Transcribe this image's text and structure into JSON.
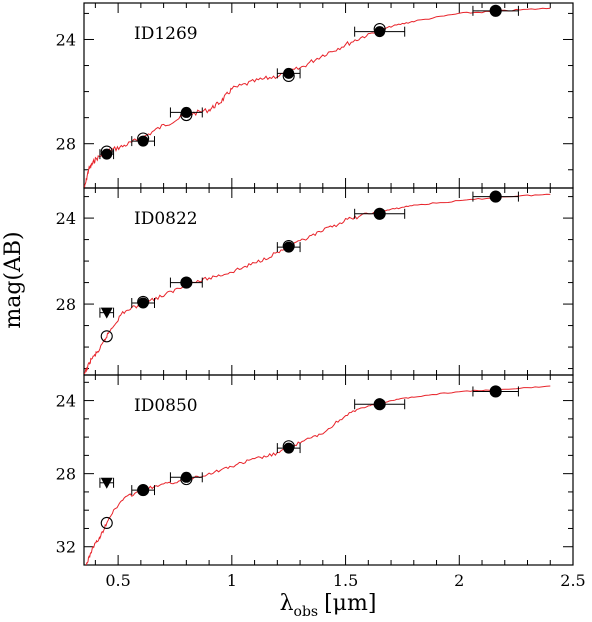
{
  "chart_data": [
    {
      "type": "scatter",
      "title": "ID1269",
      "xlim": [
        0.35,
        2.5
      ],
      "ylim": [
        29.7,
        22.6
      ],
      "yticks": [
        24,
        28
      ],
      "photometry": [
        {
          "x": 0.45,
          "xerr": 0.03,
          "y": 28.4
        },
        {
          "x": 0.61,
          "xerr": 0.05,
          "y": 27.9
        },
        {
          "x": 0.8,
          "xerr": 0.07,
          "y": 26.8
        },
        {
          "x": 1.25,
          "xerr": 0.05,
          "y": 25.3
        },
        {
          "x": 1.65,
          "xerr": 0.11,
          "y": 23.7
        },
        {
          "x": 2.16,
          "xerr": 0.1,
          "y": 22.9
        }
      ],
      "model": [
        {
          "x": 0.45,
          "y": 28.3
        },
        {
          "x": 0.61,
          "y": 27.8
        },
        {
          "x": 0.8,
          "y": 26.9
        },
        {
          "x": 1.25,
          "y": 25.4
        },
        {
          "x": 1.65,
          "y": 23.6
        },
        {
          "x": 2.16,
          "y": 22.9
        }
      ],
      "sed_curve": [
        [
          0.35,
          29.8
        ],
        [
          0.37,
          29.0
        ],
        [
          0.4,
          28.6
        ],
        [
          0.45,
          28.3
        ],
        [
          0.52,
          28.1
        ],
        [
          0.6,
          27.8
        ],
        [
          0.7,
          27.3
        ],
        [
          0.8,
          26.9
        ],
        [
          0.9,
          26.7
        ],
        [
          0.95,
          26.4
        ],
        [
          1.0,
          25.9
        ],
        [
          1.1,
          25.6
        ],
        [
          1.2,
          25.4
        ],
        [
          1.3,
          25.1
        ],
        [
          1.4,
          24.6
        ],
        [
          1.5,
          24.2
        ],
        [
          1.6,
          23.8
        ],
        [
          1.7,
          23.5
        ],
        [
          1.8,
          23.3
        ],
        [
          2.0,
          23.0
        ],
        [
          2.2,
          22.9
        ],
        [
          2.4,
          22.8
        ]
      ]
    },
    {
      "type": "scatter",
      "title": "ID0822",
      "xlim": [
        0.35,
        2.5
      ],
      "ylim": [
        31.3,
        22.6
      ],
      "yticks": [
        24,
        28
      ],
      "photometry": [
        {
          "x": 0.61,
          "xerr": 0.05,
          "y": 27.95
        },
        {
          "x": 0.8,
          "xerr": 0.07,
          "y": 27.0
        },
        {
          "x": 1.25,
          "xerr": 0.05,
          "y": 25.35
        },
        {
          "x": 1.65,
          "xerr": 0.11,
          "y": 23.8
        },
        {
          "x": 2.16,
          "xerr": 0.1,
          "y": 23.0
        }
      ],
      "model": [
        {
          "x": 0.45,
          "y": 29.5
        },
        {
          "x": 0.61,
          "y": 27.9
        },
        {
          "x": 0.8,
          "y": 27.0
        },
        {
          "x": 1.25,
          "y": 25.3
        },
        {
          "x": 1.65,
          "y": 23.8
        },
        {
          "x": 2.16,
          "y": 23.0
        }
      ],
      "upper_limits": [
        {
          "x": 0.45,
          "xerr": 0.03,
          "y": 28.4
        }
      ],
      "sed_curve": [
        [
          0.35,
          31.3
        ],
        [
          0.38,
          30.6
        ],
        [
          0.42,
          30.1
        ],
        [
          0.46,
          29.3
        ],
        [
          0.52,
          28.4
        ],
        [
          0.6,
          28.0
        ],
        [
          0.7,
          27.6
        ],
        [
          0.8,
          27.1
        ],
        [
          0.9,
          26.8
        ],
        [
          1.0,
          26.5
        ],
        [
          1.1,
          26.1
        ],
        [
          1.2,
          25.6
        ],
        [
          1.3,
          25.1
        ],
        [
          1.4,
          24.6
        ],
        [
          1.5,
          24.1
        ],
        [
          1.6,
          23.8
        ],
        [
          1.7,
          23.6
        ],
        [
          1.8,
          23.4
        ],
        [
          2.0,
          23.2
        ],
        [
          2.2,
          23.0
        ],
        [
          2.4,
          22.9
        ]
      ]
    },
    {
      "type": "scatter",
      "title": "ID0850",
      "xlim": [
        0.35,
        2.5
      ],
      "ylim": [
        33.0,
        22.6
      ],
      "yticks": [
        24,
        28,
        32
      ],
      "photometry": [
        {
          "x": 0.61,
          "xerr": 0.05,
          "y": 28.9
        },
        {
          "x": 0.8,
          "xerr": 0.07,
          "y": 28.2
        },
        {
          "x": 1.25,
          "xerr": 0.05,
          "y": 26.6
        },
        {
          "x": 1.65,
          "xerr": 0.11,
          "y": 24.2
        },
        {
          "x": 2.16,
          "xerr": 0.1,
          "y": 23.5
        }
      ],
      "model": [
        {
          "x": 0.45,
          "y": 30.7
        },
        {
          "x": 0.61,
          "y": 28.9
        },
        {
          "x": 0.8,
          "y": 28.3
        },
        {
          "x": 1.25,
          "y": 26.5
        },
        {
          "x": 1.65,
          "y": 24.2
        },
        {
          "x": 2.16,
          "y": 23.5
        }
      ],
      "upper_limits": [
        {
          "x": 0.45,
          "xerr": 0.03,
          "y": 28.5
        }
      ],
      "sed_curve": [
        [
          0.36,
          33.0
        ],
        [
          0.39,
          32.0
        ],
        [
          0.42,
          31.5
        ],
        [
          0.46,
          30.4
        ],
        [
          0.52,
          29.4
        ],
        [
          0.6,
          28.9
        ],
        [
          0.7,
          28.6
        ],
        [
          0.8,
          28.3
        ],
        [
          0.9,
          28.0
        ],
        [
          1.0,
          27.6
        ],
        [
          1.1,
          27.2
        ],
        [
          1.2,
          26.9
        ],
        [
          1.3,
          26.3
        ],
        [
          1.4,
          25.8
        ],
        [
          1.5,
          24.8
        ],
        [
          1.6,
          24.3
        ],
        [
          1.7,
          24.0
        ],
        [
          1.8,
          23.8
        ],
        [
          2.0,
          23.5
        ],
        [
          2.2,
          23.4
        ],
        [
          2.4,
          23.2
        ]
      ]
    }
  ],
  "axes": {
    "xticks": [
      0.5,
      1,
      1.5,
      2,
      2.5
    ],
    "xtick_labels": [
      "0.5",
      "1",
      "1.5",
      "2",
      "2.5"
    ],
    "xlabel_main": "λ",
    "xlabel_sub": "obs",
    "xlabel_unit": "[μm]",
    "ylabel": "mag(AB)"
  },
  "colors": {
    "sed_curve": "#e8242b",
    "markers": "#000000"
  }
}
